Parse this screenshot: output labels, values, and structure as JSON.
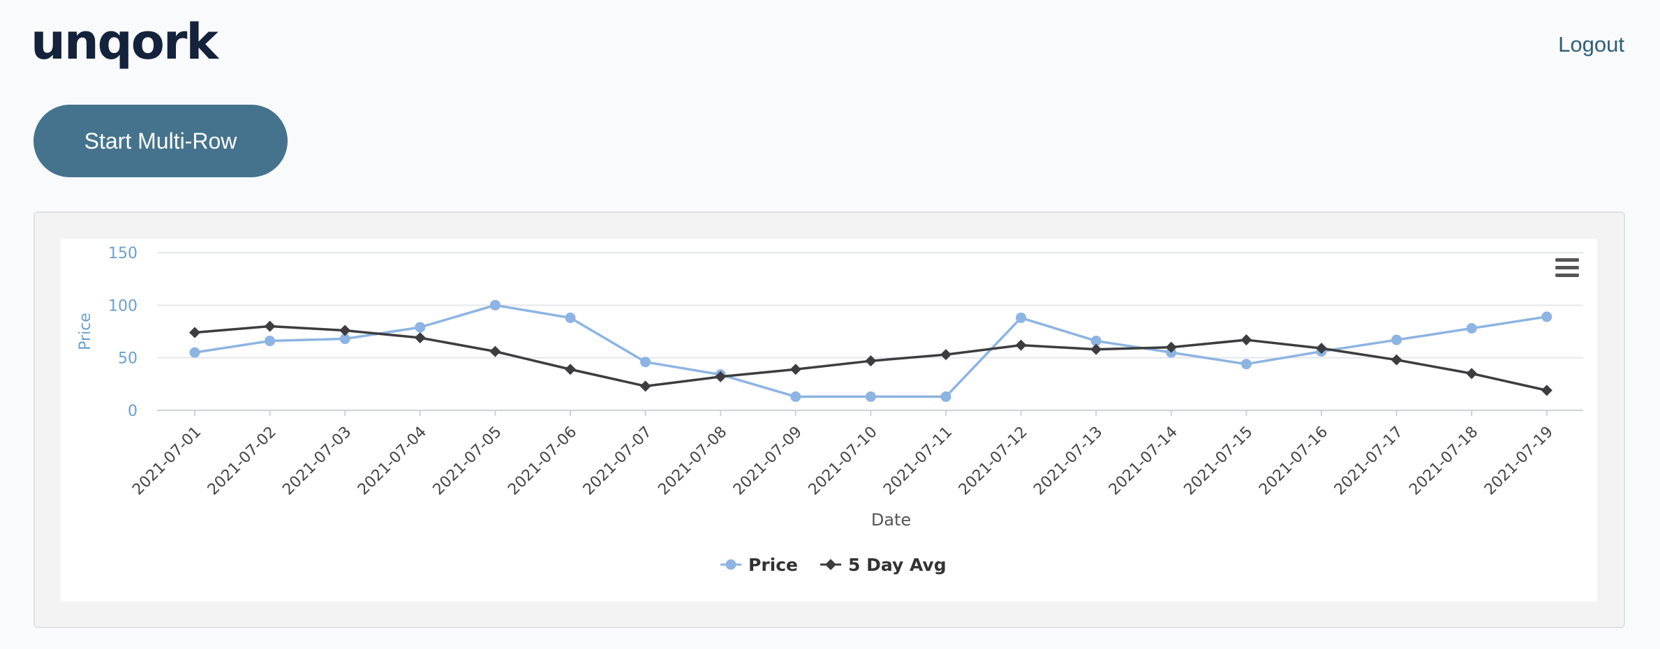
{
  "header": {
    "logo_text": "unqork",
    "logout_label": "Logout"
  },
  "toolbar": {
    "start_button_label": "Start Multi-Row"
  },
  "chart": {
    "menu_icon": "hamburger-menu-icon"
  },
  "colors": {
    "price": "#8db4e2",
    "avg": "#3d3d3f",
    "button": "#45738d",
    "logo": "#15223b"
  },
  "chart_data": {
    "type": "line",
    "x": [
      "2021-07-01",
      "2021-07-02",
      "2021-07-03",
      "2021-07-04",
      "2021-07-05",
      "2021-07-06",
      "2021-07-07",
      "2021-07-08",
      "2021-07-09",
      "2021-07-10",
      "2021-07-11",
      "2021-07-12",
      "2021-07-13",
      "2021-07-14",
      "2021-07-15",
      "2021-07-16",
      "2021-07-17",
      "2021-07-18",
      "2021-07-19"
    ],
    "series": [
      {
        "name": "Price",
        "marker": "circle",
        "values": [
          55,
          66,
          68,
          79,
          100,
          88,
          46,
          34,
          13,
          13,
          13,
          88,
          66,
          55,
          44,
          56,
          67,
          78,
          89
        ]
      },
      {
        "name": "5 Day Avg",
        "marker": "diamond",
        "values": [
          74,
          80,
          76,
          69,
          56,
          39,
          23,
          32,
          39,
          47,
          53,
          62,
          58,
          60,
          67,
          59,
          48,
          35,
          19
        ]
      }
    ],
    "xlabel": "Date",
    "ylabel": "Price",
    "ylim": [
      0,
      150
    ],
    "yticks": [
      0,
      50,
      100,
      150
    ],
    "grid": true,
    "legend": "bottom-center"
  }
}
